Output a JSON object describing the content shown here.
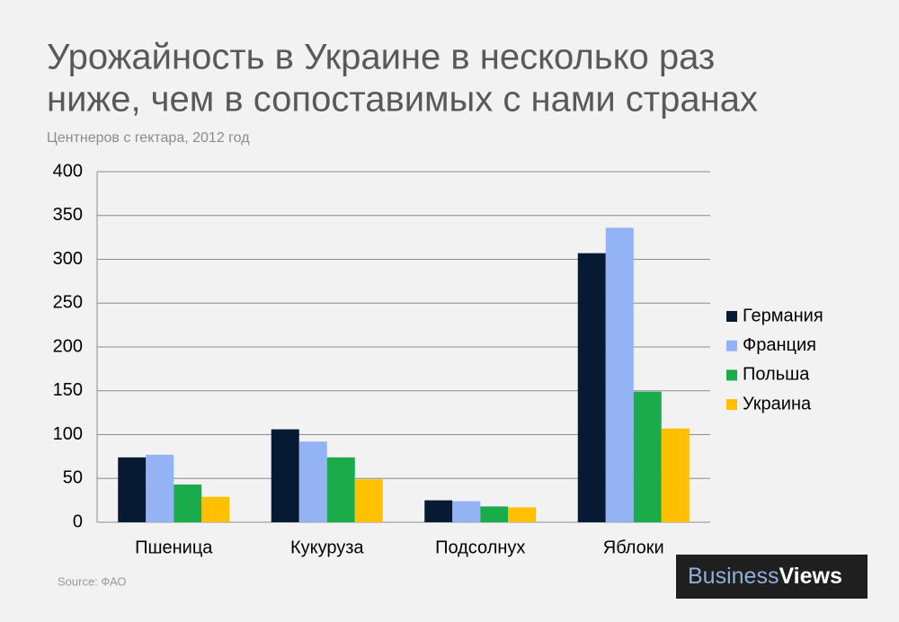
{
  "chart_data": {
    "type": "bar",
    "title": [
      "Урожайность в Украине в несколько раз",
      "ниже, чем в сопоставимых с нами странах"
    ],
    "subtitle": "Центнеров с гектара, 2012 год",
    "categories": [
      "Пшеница",
      "Кукуруза",
      "Подсолнух",
      "Яблоки"
    ],
    "series": [
      {
        "name": "Германия",
        "color": "#061a33",
        "values": [
          74,
          106,
          25,
          307
        ]
      },
      {
        "name": "Франция",
        "color": "#94b3f5",
        "values": [
          77,
          92,
          24,
          336
        ]
      },
      {
        "name": "Польша",
        "color": "#1aab4b",
        "values": [
          43,
          74,
          18,
          149
        ]
      },
      {
        "name": "Украина",
        "color": "#ffc000",
        "values": [
          29,
          49,
          17,
          107
        ]
      }
    ],
    "ylim": [
      0,
      400
    ],
    "yticks": [
      0,
      50,
      100,
      150,
      200,
      250,
      300,
      350,
      400
    ],
    "grid": true,
    "legend": "right",
    "source": "Source: ФАО",
    "brand": [
      "Business",
      "Views"
    ]
  }
}
